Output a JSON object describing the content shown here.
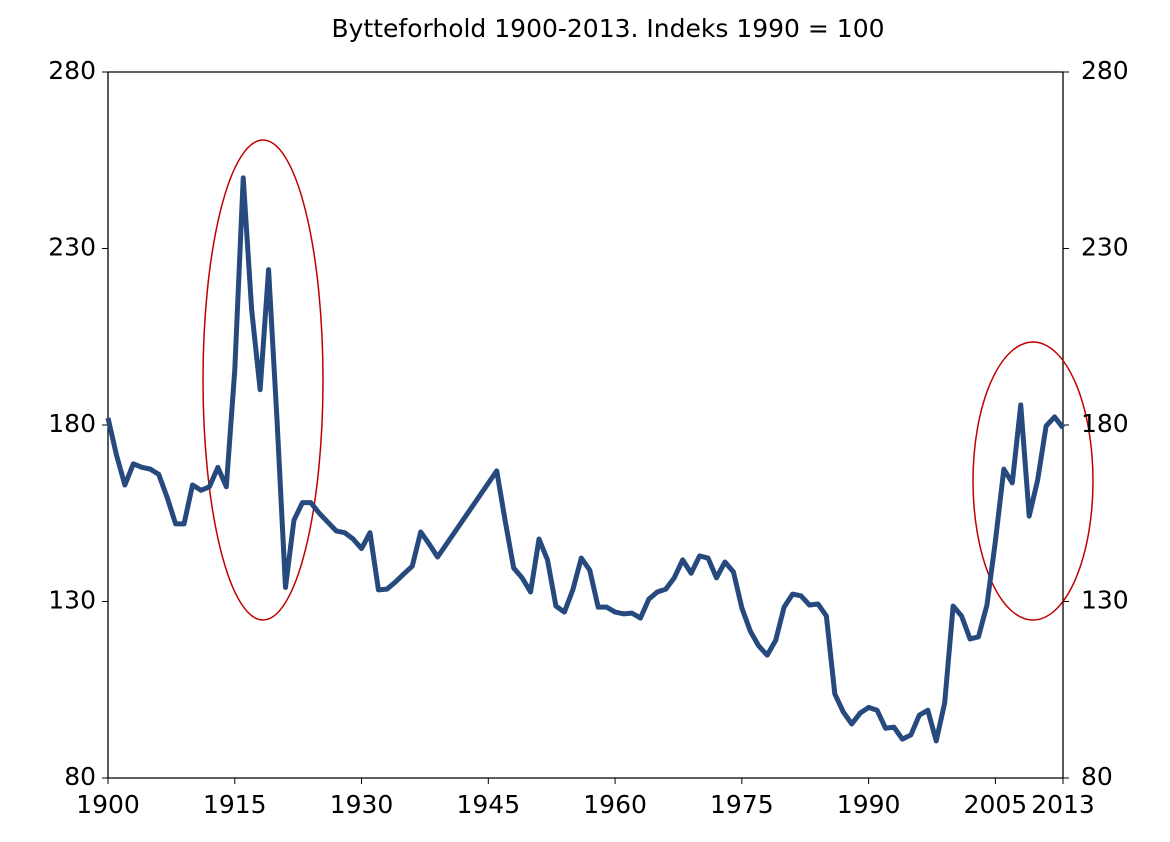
{
  "chart_data": {
    "type": "line",
    "title": "Bytteforhold 1900-2013. Indeks 1990 = 100",
    "x": [
      1900,
      1901,
      1902,
      1903,
      1904,
      1905,
      1906,
      1907,
      1908,
      1909,
      1910,
      1911,
      1912,
      1913,
      1914,
      1915,
      1916,
      1917,
      1918,
      1919,
      1920,
      1921,
      1922,
      1923,
      1924,
      1925,
      1926,
      1927,
      1928,
      1929,
      1930,
      1931,
      1932,
      1933,
      1934,
      1935,
      1936,
      1937,
      1938,
      1939,
      1946,
      1947,
      1948,
      1949,
      1950,
      1951,
      1952,
      1953,
      1954,
      1955,
      1956,
      1957,
      1958,
      1959,
      1960,
      1961,
      1962,
      1963,
      1964,
      1965,
      1966,
      1967,
      1968,
      1969,
      1970,
      1971,
      1972,
      1973,
      1974,
      1975,
      1976,
      1977,
      1978,
      1979,
      1980,
      1981,
      1982,
      1983,
      1984,
      1985,
      1986,
      1987,
      1988,
      1989,
      1990,
      1991,
      1992,
      1993,
      1994,
      1995,
      1996,
      1997,
      1998,
      1999,
      2000,
      2001,
      2002,
      2003,
      2004,
      2005,
      2006,
      2007,
      2008,
      2009,
      2010,
      2011,
      2012,
      2013
    ],
    "series": [
      {
        "name": "Bytteforhold",
        "color": "#264a7e",
        "values": [
          182,
          171.5,
          163,
          169,
          168,
          167.5,
          166,
          159.5,
          152,
          152,
          163,
          161.5,
          162.5,
          168,
          162.5,
          195.6,
          250,
          212.6,
          190,
          224,
          181.4,
          134,
          153,
          158,
          158,
          155,
          152.5,
          150,
          149.5,
          147.7,
          145,
          149.5,
          133.3,
          133.5,
          135.5,
          137.8,
          140,
          149.7,
          146.3,
          142.6,
          167,
          152.8,
          139.5,
          136.7,
          132.7,
          147.7,
          141.8,
          128.7,
          127,
          133.3,
          142.3,
          138.9,
          128.4,
          128.4,
          127,
          126.5,
          126.7,
          125.3,
          130.7,
          132.7,
          133.5,
          136.7,
          141.8,
          138,
          142.9,
          142.3,
          136.7,
          141.2,
          138.4,
          128.2,
          121.6,
          117.4,
          114.8,
          119,
          128.4,
          132.1,
          131.6,
          129,
          129.3,
          125.9,
          103.8,
          98.7,
          95.3,
          98.4,
          100,
          99.2,
          94.1,
          94.4,
          91,
          92.2,
          97.8,
          99.2,
          90.5,
          101.3,
          128.7,
          125.9,
          119.4,
          120,
          129,
          147.1,
          167.5,
          163.6,
          185.7,
          154.2,
          164.4,
          179.7,
          182.3,
          179.2
        ]
      }
    ],
    "xlim": [
      1900,
      2013
    ],
    "xticks": [
      1900,
      1915,
      1930,
      1945,
      1960,
      1975,
      1990,
      2005,
      2013
    ],
    "ylim": [
      80,
      280
    ],
    "yticks": [
      80,
      130,
      180,
      230,
      280
    ],
    "y2lim": [
      80,
      280
    ],
    "y2ticks": [
      80,
      130,
      180,
      230,
      280
    ]
  }
}
